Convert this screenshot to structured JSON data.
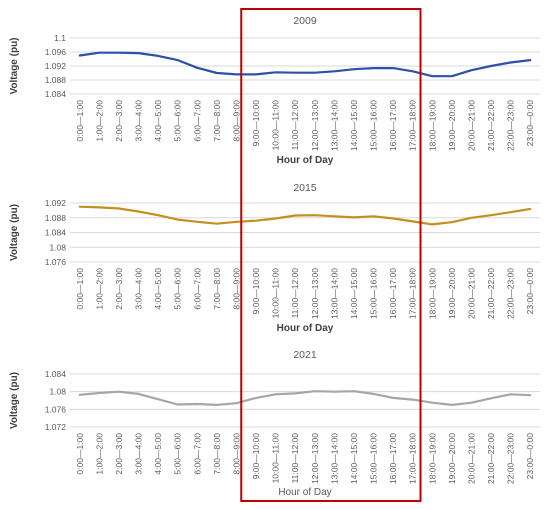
{
  "chart_data": [
    {
      "type": "line",
      "title": "2009",
      "xlabel": "Hour of Day",
      "ylabel": "Voltage (pu)",
      "ylim": [
        1.084,
        1.1
      ],
      "yticks": [
        "1.084",
        "1.088",
        "1.092",
        "1.096",
        "1.1"
      ],
      "grid": true,
      "categories": [
        "0:00—1:00",
        "1:00—2:00",
        "2:00—3:00",
        "3:00—4:00",
        "4:00—5:00",
        "5:00—6:00",
        "6:00—7:00",
        "7:00—8:00",
        "8:00—9:00",
        "9:00—10:00",
        "10:00—11:00",
        "11:00—12:00",
        "12:00—13:00",
        "13:00—14:00",
        "14:00—15:00",
        "15:00—16:00",
        "16:00—17:00",
        "17:00—18:00",
        "18:00—19:00",
        "19:00—20:00",
        "20:00—21:00",
        "21:00—22:00",
        "22:00—23:00",
        "23:00—0:00"
      ],
      "series": [
        {
          "values": [
            1.095,
            1.0958,
            1.0958,
            1.0957,
            1.0949,
            1.0937,
            1.0915,
            1.09,
            1.0896,
            1.0896,
            1.0902,
            1.0901,
            1.0901,
            1.0905,
            1.0911,
            1.0914,
            1.0914,
            1.0905,
            1.0891,
            1.0891,
            1.0908,
            1.092,
            1.093,
            1.0937
          ],
          "color": "#2f4fa8"
        }
      ]
    },
    {
      "type": "line",
      "title": "2015",
      "xlabel": "Hour of Day",
      "ylabel": "Voltage (pu)",
      "ylim": [
        1.076,
        1.092
      ],
      "yticks": [
        "1.076",
        "1.08",
        "1.084",
        "1.088",
        "1.092"
      ],
      "grid": true,
      "categories": [
        "0:00—1:00",
        "1:00—2:00",
        "2:00—3:00",
        "3:00—4:00",
        "4:00—5:00",
        "5:00—6:00",
        "6:00—7:00",
        "7:00—8:00",
        "8:00—9:00",
        "9:00—10:00",
        "10:00—11:00",
        "11:00—12:00",
        "12:00—13:00",
        "13:00—14:00",
        "14:00—15:00",
        "15:00—16:00",
        "16:00—17:00",
        "17:00—18:00",
        "18:00—19:00",
        "19:00—20:00",
        "20:00—21:00",
        "21:00—22:00",
        "22:00—23:00",
        "23:00—0:00"
      ],
      "series": [
        {
          "values": [
            1.091,
            1.0908,
            1.0905,
            1.0897,
            1.0887,
            1.0875,
            1.0869,
            1.0864,
            1.0869,
            1.0872,
            1.0878,
            1.0886,
            1.0887,
            1.0884,
            1.0881,
            1.0884,
            1.0878,
            1.087,
            1.0862,
            1.0868,
            1.088,
            1.0887,
            1.0895,
            1.0904
          ],
          "color": "#c58f1d"
        }
      ]
    },
    {
      "type": "line",
      "title": "2021",
      "xlabel": "Hour of Day",
      "ylabel": "Voltage (pu)",
      "ylim": [
        1.072,
        1.084
      ],
      "yticks": [
        "1.072",
        "1.076",
        "1.08",
        "1.084"
      ],
      "grid": true,
      "categories": [
        "0:00—1:00",
        "1:00—2:00",
        "2:00—3:00",
        "3:00—4:00",
        "4:00—5:00",
        "5:00—6:00",
        "6:00—7:00",
        "7:00—8:00",
        "8:00—9:00",
        "9:00—10:00",
        "10:00—11:00",
        "11:00—12:00",
        "12:00—13:00",
        "13:00—14:00",
        "14:00—15:00",
        "15:00—16:00",
        "16:00—17:00",
        "17:00—18:00",
        "18:00—19:00",
        "19:00—20:00",
        "20:00—21:00",
        "21:00—22:00",
        "22:00—23:00",
        "23:00—0:00"
      ],
      "series": [
        {
          "values": [
            1.0793,
            1.0797,
            1.08,
            1.0795,
            1.0783,
            1.0771,
            1.0772,
            1.077,
            1.0774,
            1.0786,
            1.0794,
            1.0796,
            1.0801,
            1.08,
            1.0801,
            1.0795,
            1.0786,
            1.0782,
            1.0775,
            1.077,
            1.0775,
            1.0785,
            1.0794,
            1.0792
          ],
          "color": "#a6a6a6"
        }
      ]
    }
  ],
  "highlight": {
    "color": "#c00000",
    "from_category": "9:00—10:00",
    "to_category": "17:00—18:00"
  }
}
